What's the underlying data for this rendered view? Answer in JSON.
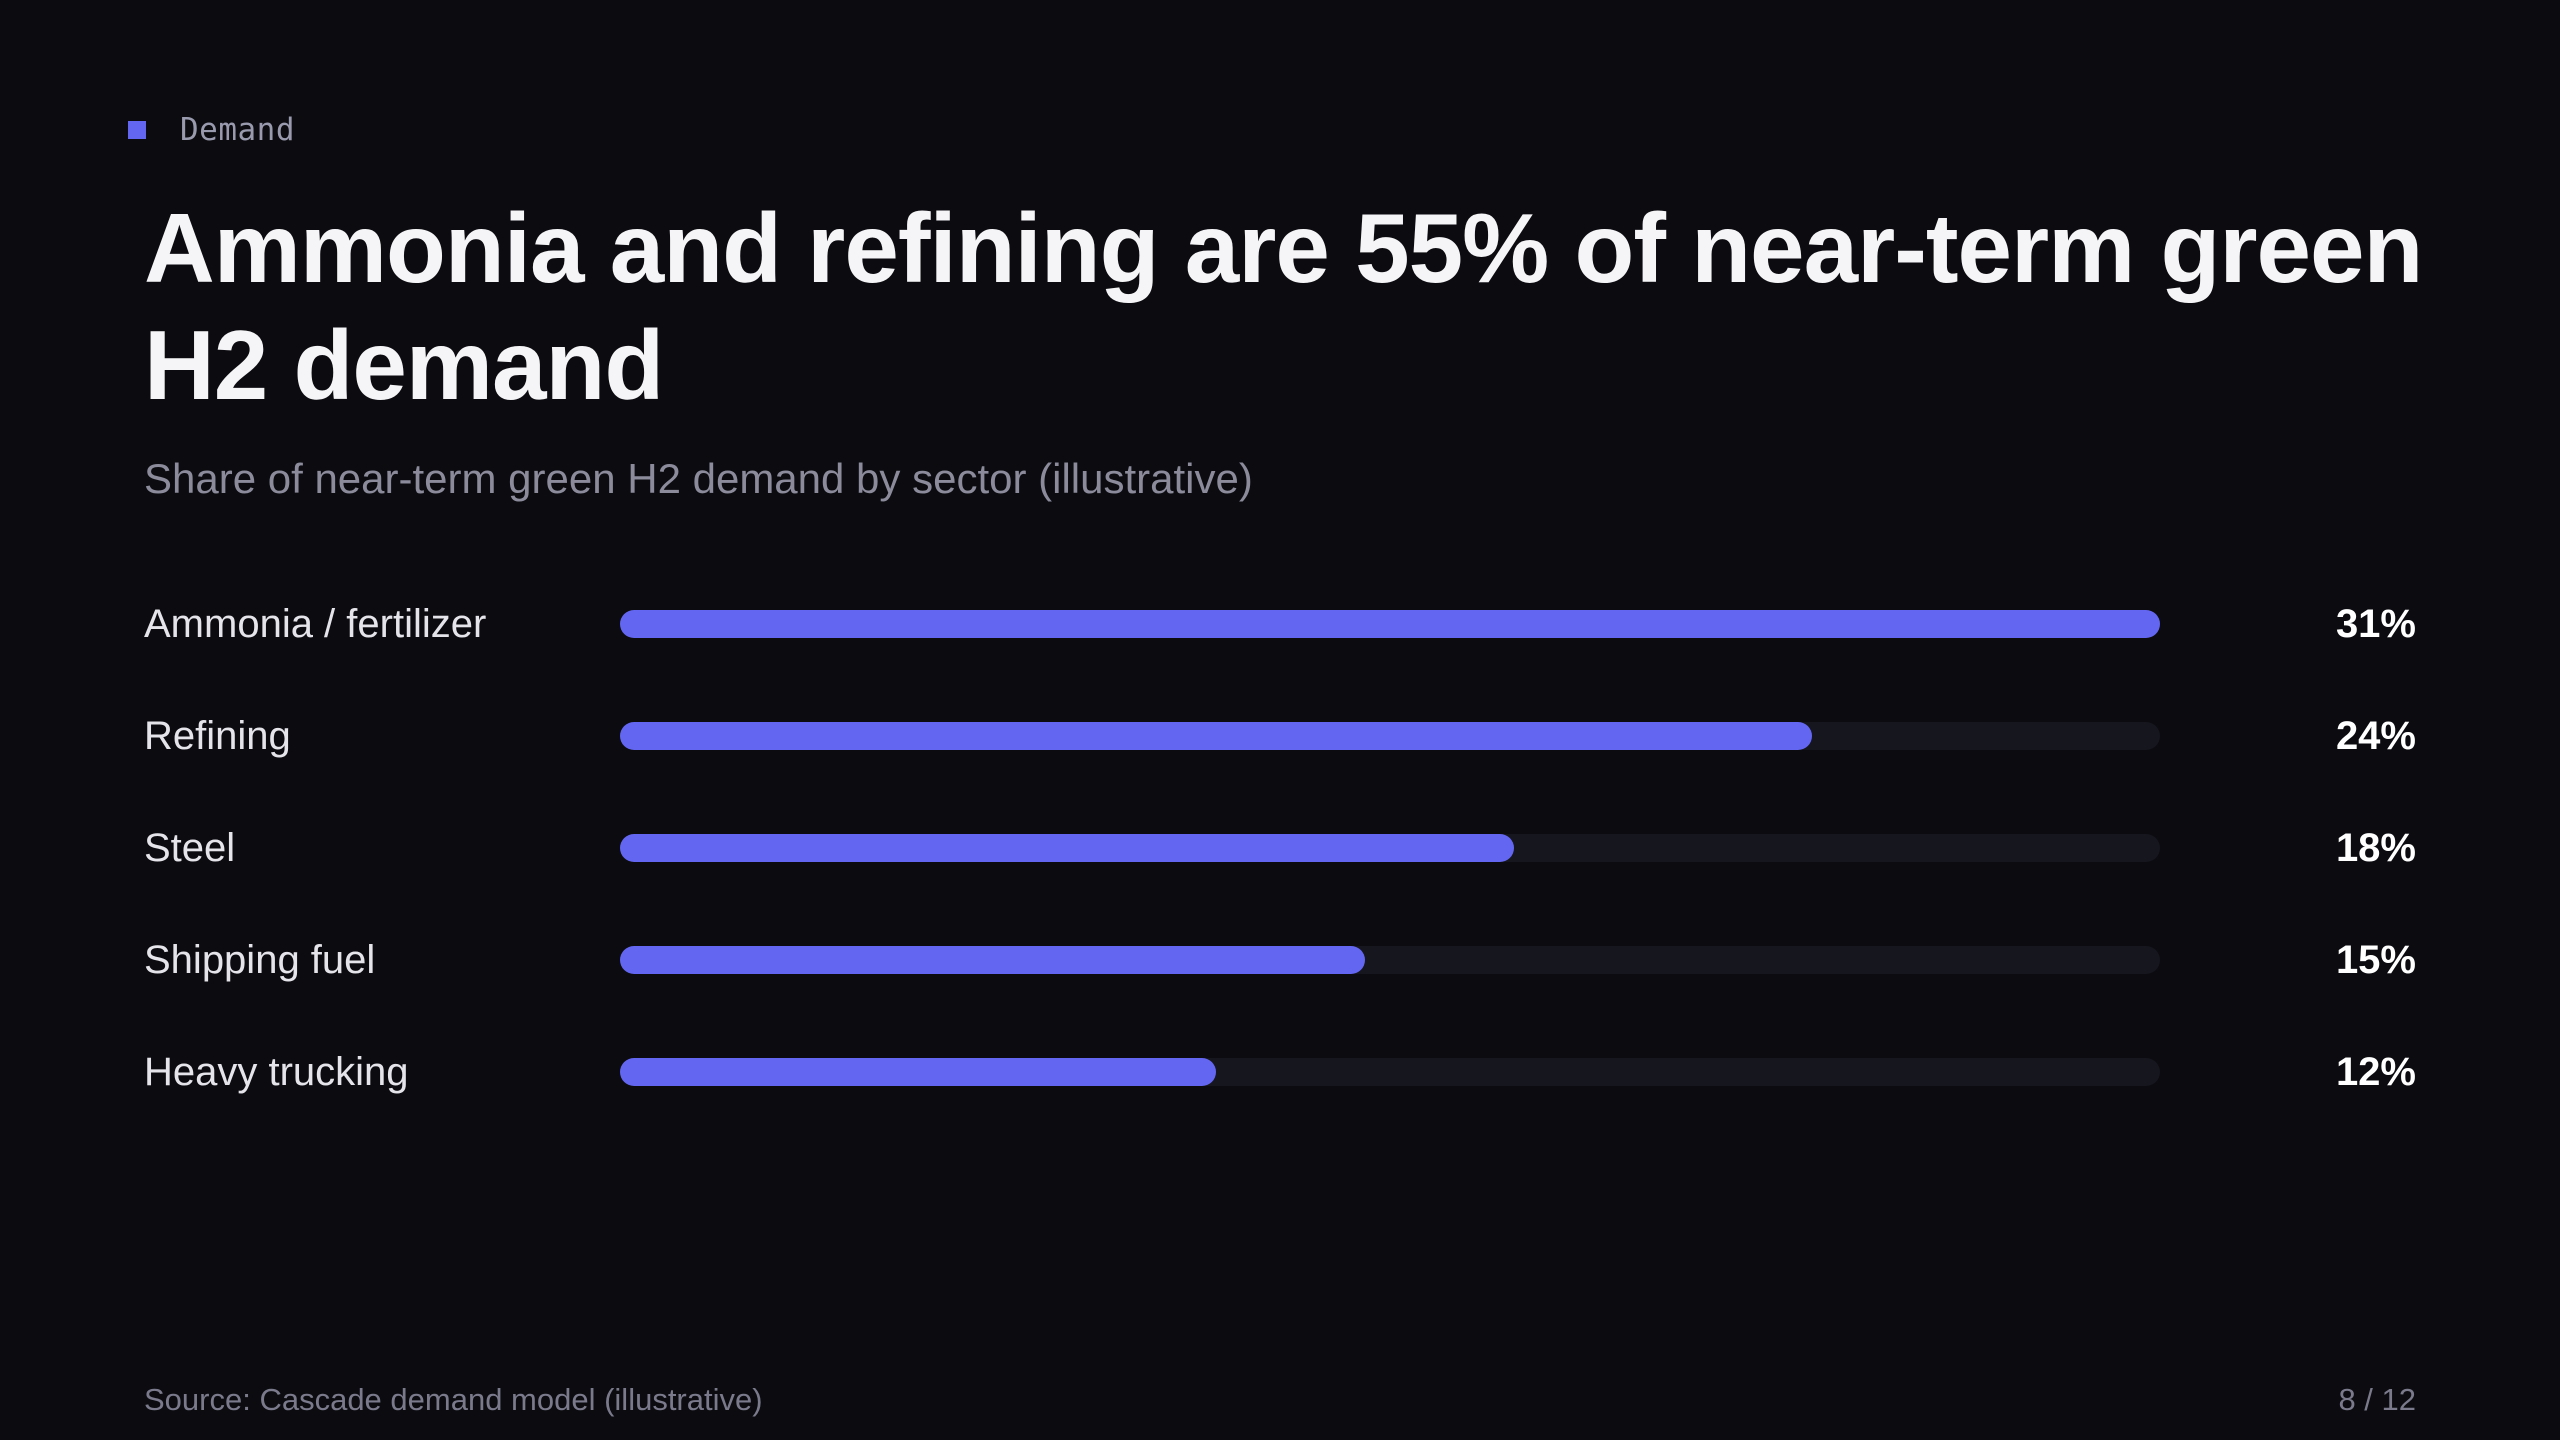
{
  "eyebrow": "Demand",
  "title": "Ammonia and refining are 55% of near-term green H2 demand",
  "subtitle": "Share of near-term green H2 demand by sector (illustrative)",
  "colors": {
    "accent": "#6366f1",
    "track": "#16161f",
    "background": "#0b0b10"
  },
  "chart_data": {
    "type": "bar",
    "orientation": "horizontal",
    "categories": [
      "Ammonia / fertilizer",
      "Refining",
      "Steel",
      "Shipping fuel",
      "Heavy trucking"
    ],
    "values": [
      31,
      24,
      18,
      15,
      12
    ],
    "value_labels": [
      "31%",
      "24%",
      "18%",
      "15%",
      "12%"
    ],
    "unit": "%",
    "xlim": [
      0,
      31
    ],
    "grid": false
  },
  "footer": {
    "source": "Source: Cascade demand model (illustrative)",
    "page": "8 / 12"
  }
}
